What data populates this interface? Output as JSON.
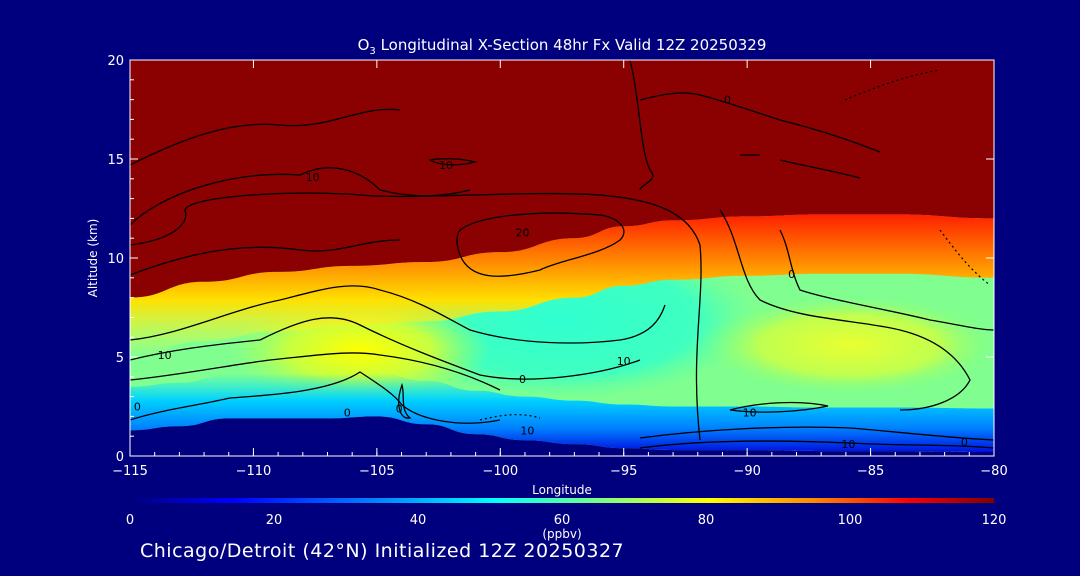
{
  "chart_data": {
    "type": "heatmap",
    "title_sym": "O",
    "title_sub": "3",
    "title_rest": " Longitudinal X-Section 48hr  Fx Valid 12Z 20250329",
    "xlabel": "Longitude",
    "ylabel": "Altitude (km)",
    "xlim": [
      -115,
      -80
    ],
    "ylim": [
      0,
      20
    ],
    "xticks": [
      -115,
      -110,
      -105,
      -100,
      -95,
      -90,
      -85,
      -80
    ],
    "xtick_labels": [
      "−115",
      "−110",
      "−105",
      "−100",
      "−95",
      "−90",
      "−85",
      "−80"
    ],
    "yticks": [
      0,
      5,
      10,
      15,
      20
    ],
    "colorbar": {
      "ticks": [
        0,
        20,
        40,
        60,
        80,
        100,
        120
      ],
      "label": "(ppbv)",
      "range": [
        0,
        120
      ],
      "colormap": [
        "#00007f",
        "#0000ff",
        "#0080ff",
        "#00ffff",
        "#7fff7f",
        "#ffff00",
        "#ff8000",
        "#ff0000",
        "#7f0000"
      ]
    },
    "background_color": "#00007f",
    "field_colors": {
      "stratosphere": "#8b0000",
      "surface": "#00007f"
    },
    "tropopause_km": [
      [
        -115,
        8.0
      ],
      [
        -112,
        8.8
      ],
      [
        -109,
        9.3
      ],
      [
        -106,
        9.6
      ],
      [
        -103,
        9.8
      ],
      [
        -100,
        10.3
      ],
      [
        -97,
        11.0
      ],
      [
        -95,
        11.6
      ],
      [
        -93,
        11.9
      ],
      [
        -90,
        12.1
      ],
      [
        -87,
        12.2
      ],
      [
        -84,
        12.2
      ],
      [
        -80,
        12.0
      ]
    ],
    "surface_km": [
      [
        -115,
        1.3
      ],
      [
        -113,
        1.5
      ],
      [
        -111,
        1.9
      ],
      [
        -109,
        1.9
      ],
      [
        -107,
        1.9
      ],
      [
        -105,
        2.0
      ],
      [
        -103,
        1.6
      ],
      [
        -101,
        1.1
      ],
      [
        -99,
        0.8
      ],
      [
        -97,
        0.6
      ],
      [
        -95,
        0.4
      ],
      [
        -93,
        0.3
      ],
      [
        -90,
        0.3
      ],
      [
        -87,
        0.25
      ],
      [
        -84,
        0.25
      ],
      [
        -80,
        0.2
      ]
    ],
    "contour_labels": [
      {
        "text": "10",
        "x": -113.6,
        "y": 5.1
      },
      {
        "text": "10",
        "x": -107.6,
        "y": 14.1
      },
      {
        "text": "10",
        "x": -102.2,
        "y": 14.7
      },
      {
        "text": "20",
        "x": -99.1,
        "y": 11.3
      },
      {
        "text": "0",
        "x": -90.8,
        "y": 18.0
      },
      {
        "text": "0",
        "x": -88.2,
        "y": 9.2
      },
      {
        "text": "10",
        "x": -95.0,
        "y": 4.8
      },
      {
        "text": "0",
        "x": -99.1,
        "y": 3.9
      },
      {
        "text": "0",
        "x": -114.7,
        "y": 2.5
      },
      {
        "text": "0",
        "x": -106.2,
        "y": 2.2
      },
      {
        "text": "0",
        "x": -104.1,
        "y": 2.4
      },
      {
        "text": "10",
        "x": -98.9,
        "y": 1.3
      },
      {
        "text": "10",
        "x": -89.9,
        "y": 2.2
      },
      {
        "text": "10",
        "x": -85.9,
        "y": 0.6
      },
      {
        "text": "0",
        "x": -81.2,
        "y": 0.7
      }
    ]
  },
  "footer": "Chicago/Detroit (42°N) Initialized 12Z 20250327"
}
